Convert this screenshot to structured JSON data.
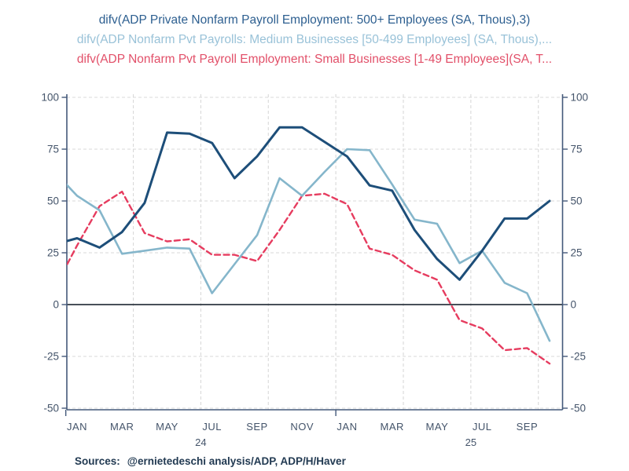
{
  "title_lines": [
    {
      "text": "difv(ADP Private Nonfarm Payroll Employment: 500+ Employees (SA, Thous),3)",
      "color": "#2d5f90"
    },
    {
      "text": "difv(ADP Nonfarm Pvt Payrolls: Medium Businesses [50-499 Employees] (SA, Thous),...",
      "color": "#99c2d8"
    },
    {
      "text": "difv(ADP Nonfarm Pvt Payroll Employment: Small Businesses [1-49 Employees](SA, T...",
      "color": "#e25069"
    }
  ],
  "source_line": {
    "label": "Sources:",
    "text": "@ernietedeschi analysis/ADP, ADP/H/Haver"
  },
  "chart_data": {
    "type": "line",
    "title": "ADP private payroll employment, 3-month difference (SA, Thous)",
    "months": [
      "2023-12",
      "2024-01",
      "2024-02",
      "2024-03",
      "2024-04",
      "2024-05",
      "2024-06",
      "2024-07",
      "2024-08",
      "2024-09",
      "2024-10",
      "2024-11",
      "2024-12",
      "2025-01",
      "2025-02",
      "2025-03",
      "2025-04",
      "2025-05",
      "2025-06",
      "2025-07",
      "2025-08",
      "2025-09",
      "2025-10"
    ],
    "x_tick_labels": [
      "JAN",
      "MAR",
      "MAY",
      "JUL",
      "SEP",
      "NOV",
      "JAN",
      "MAR",
      "MAY",
      "JUL",
      "SEP"
    ],
    "year_labels": [
      "24",
      "25"
    ],
    "y_ticks": [
      -50,
      -25,
      0,
      25,
      50,
      75,
      100
    ],
    "ylim": [
      -50,
      100
    ],
    "grid": "dashed, horizontal at ticks except zero; vertical at quarter starts",
    "legend_position": "title lines act as legend",
    "series": [
      {
        "name": "difv(ADP Private Nonfarm Payroll Employment: 500+ Employees (SA, Thous),3)",
        "color": "#1d4e79",
        "dash": "solid",
        "width": 3,
        "values": [
          29,
          32,
          27.5,
          35,
          49,
          83,
          82.5,
          78,
          61,
          71.5,
          85.5,
          85.5,
          78.5,
          71.5,
          57.5,
          55,
          36,
          22,
          12,
          26,
          41.5,
          41.5,
          50
        ]
      },
      {
        "name": "difv(ADP Nonfarm Pvt Payrolls: Medium Businesses [50-499 Employees] (SA, Thous),...",
        "color": "#85b6cb",
        "dash": "solid",
        "width": 2.6,
        "values": [
          64,
          52.5,
          45.5,
          24.5,
          26,
          27.5,
          27,
          5.5,
          19.5,
          33.5,
          61,
          52.5,
          64,
          75,
          74.5,
          58,
          41,
          39,
          20,
          26,
          10.5,
          5.5,
          -17.5
        ]
      },
      {
        "name": "difv(ADP Nonfarm Pvt Payroll Employment: Small Businesses [1-49 Employees](SA, T...",
        "color": "#e63c5f",
        "dash": "dashed",
        "width": 2.4,
        "values": [
          8,
          28.5,
          47.5,
          54.5,
          34.5,
          30.5,
          31.5,
          24,
          24,
          21,
          36,
          52.5,
          53.5,
          48.5,
          27,
          24,
          16.5,
          12,
          -7.5,
          -11.5,
          -22,
          -21,
          -28.5
        ]
      }
    ]
  }
}
